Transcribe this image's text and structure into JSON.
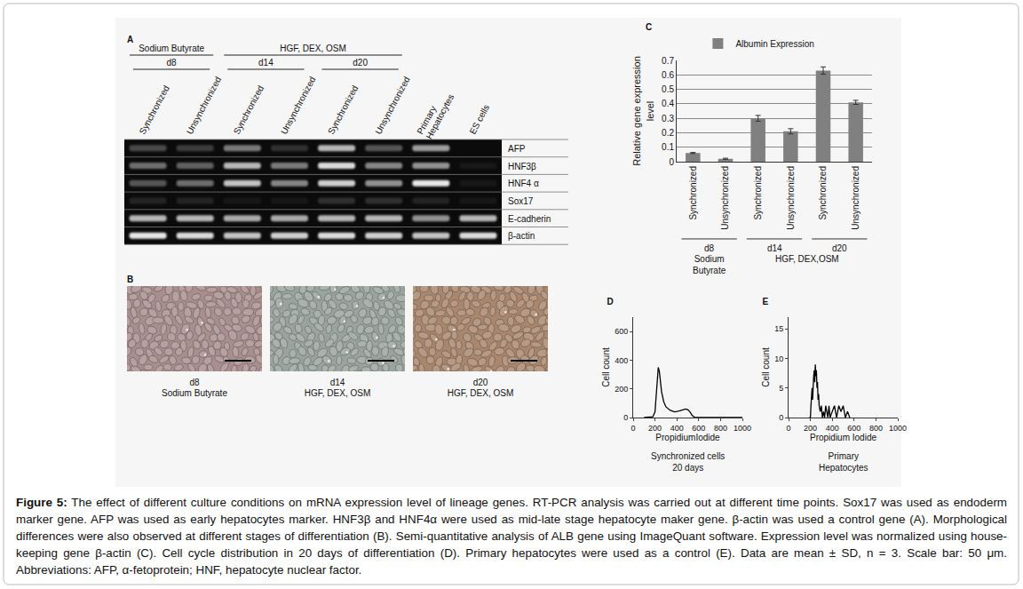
{
  "chart_data": [
    {
      "type": "bar",
      "title": "C",
      "categories": [
        "Synchronized",
        "Unsynchronized",
        "Synchronized",
        "Unsynchronized",
        "Synchronized",
        "Unsynchronized"
      ],
      "groups": [
        {
          "label": "d8",
          "span": 2
        },
        {
          "label": "d14",
          "span": 2
        },
        {
          "label": "d20",
          "span": 2
        }
      ],
      "supergroups": [
        {
          "label": "Sodium\nButyrate",
          "span": 2
        },
        {
          "label": "HGF, DEX,OSM",
          "span": 4
        }
      ],
      "ylabel": "Relative gene expression\nlevel",
      "ylim": [
        0,
        0.7
      ],
      "yticks": [
        0,
        0.1,
        0.2,
        0.3,
        0.4,
        0.5,
        0.6,
        0.7
      ],
      "grid": true,
      "legend": "top",
      "series": [
        {
          "name": "Albumin Expression",
          "color": "#808080",
          "values": [
            0.06,
            0.02,
            0.3,
            0.21,
            0.63,
            0.41
          ],
          "errors": [
            0.004,
            0.004,
            0.02,
            0.018,
            0.025,
            0.014
          ]
        }
      ]
    },
    {
      "type": "line",
      "title": "D",
      "subtitle": "Synchronized cells\n20 days",
      "xlabel": "PropidiumIodide",
      "ylabel": "Cell count",
      "xlim": [
        0,
        1000
      ],
      "xticks": [
        0,
        200,
        400,
        600,
        800,
        1000
      ],
      "ylim": [
        0,
        700
      ],
      "yticks": [
        0,
        200,
        400,
        600
      ],
      "grid": false,
      "series": [
        {
          "color": "#000000",
          "x": [
            100,
            180,
            200,
            210,
            220,
            230,
            240,
            250,
            260,
            280,
            300,
            340,
            380,
            420,
            460,
            480,
            500,
            520,
            540,
            560,
            580,
            1000
          ],
          "values": [
            0,
            5,
            40,
            150,
            300,
            350,
            320,
            250,
            180,
            110,
            75,
            50,
            40,
            45,
            55,
            60,
            55,
            40,
            15,
            3,
            0,
            0
          ]
        }
      ]
    },
    {
      "type": "line",
      "title": "E",
      "subtitle": "Primary\nHepatocytes",
      "xlabel": "Propidium Iodide",
      "ylabel": "Cell count",
      "xlim": [
        0,
        1000
      ],
      "xticks": [
        0,
        200,
        400,
        600,
        800,
        1000
      ],
      "ylim": [
        0,
        17
      ],
      "yticks": [
        0,
        5,
        10,
        15
      ],
      "grid": false,
      "series": [
        {
          "color": "#000000",
          "x": [
            190,
            200,
            205,
            210,
            215,
            220,
            225,
            230,
            235,
            240,
            245,
            250,
            255,
            260,
            265,
            270,
            275,
            280,
            290,
            300,
            310,
            320,
            330,
            340,
            350,
            360,
            370,
            380,
            400,
            420,
            440,
            460,
            480,
            500,
            520,
            540,
            560
          ],
          "values": [
            0,
            0,
            2,
            4,
            5,
            3,
            6,
            7,
            8,
            6,
            9,
            7,
            8,
            5,
            6,
            3,
            4,
            2,
            1,
            2,
            0,
            1,
            0,
            2,
            1,
            0,
            2,
            0,
            1,
            2,
            0,
            2,
            1,
            2,
            0,
            1,
            0
          ]
        }
      ]
    }
  ],
  "gel": {
    "panel": "A",
    "groups": [
      {
        "label": "Sodium Butyrate",
        "span": 2,
        "days": [
          {
            "label": "d8",
            "span": 2
          }
        ]
      },
      {
        "label": "HGF, DEX, OSM",
        "span": 4,
        "days": [
          {
            "label": "d14",
            "span": 2
          },
          {
            "label": "d20",
            "span": 2
          }
        ]
      }
    ],
    "lanes": [
      "Synchronized",
      "Unsynchronized",
      "Synchronized",
      "Unsynchronized",
      "Synchronized",
      "Unsynchronized",
      "Primary\nHepatocytes",
      "ES cells"
    ],
    "genes": [
      {
        "name": "AFP",
        "intensity": [
          0.25,
          0.2,
          0.45,
          0.15,
          0.7,
          0.3,
          0.6,
          0
        ]
      },
      {
        "name": "HNF3β",
        "intensity": [
          0.4,
          0.35,
          0.7,
          0.45,
          0.85,
          0.5,
          0.55,
          0.05
        ]
      },
      {
        "name": "HNF4 α",
        "intensity": [
          0.3,
          0.4,
          0.75,
          0.5,
          0.8,
          0.55,
          0.9,
          0.05
        ]
      },
      {
        "name": "Sox17",
        "intensity": [
          0.1,
          0.1,
          0.05,
          0.05,
          0.15,
          0.15,
          0.1,
          0.05
        ]
      },
      {
        "name": "E-cadherin",
        "intensity": [
          0.7,
          0.7,
          0.65,
          0.65,
          0.7,
          0.7,
          0.55,
          0.7
        ]
      },
      {
        "name": "β-actin",
        "intensity": [
          0.9,
          0.85,
          0.75,
          0.8,
          0.85,
          0.8,
          0.75,
          0.85
        ]
      }
    ]
  },
  "micrographs": {
    "panel": "B",
    "images": [
      {
        "label": "d8\nSodium Butyrate",
        "color": "#a88e8e"
      },
      {
        "label": "d14\nHGF, DEX, OSM",
        "color": "#9aa39e"
      },
      {
        "label": "d20\nHGF, DEX, OSM",
        "color": "#a9876e"
      }
    ]
  },
  "caption": {
    "label": "Figure 5:",
    "text": "The effect of different culture conditions on mRNA expression level of lineage genes. RT-PCR analysis was carried out at different time points. Sox17 was used as endoderm marker gene. AFP was used as early hepatocytes marker. HNF3β and HNF4α were used as mid-late stage hepatocyte maker gene. β-actin was used a control gene (A). Morphological differences were also observed at different stages of differentiation (B). Semi-quantitative analysis of ALB gene using ImageQuant software. Expression level was normalized using house-keeping gene β-actin (C). Cell cycle distribution in 20 days of differentiation (D). Primary hepatocytes were used as a control (E). Data are mean ± SD, n = 3. Scale bar: 50 μm. Abbreviations: AFP, α-fetoprotein; HNF, hepatocyte nuclear factor."
  }
}
